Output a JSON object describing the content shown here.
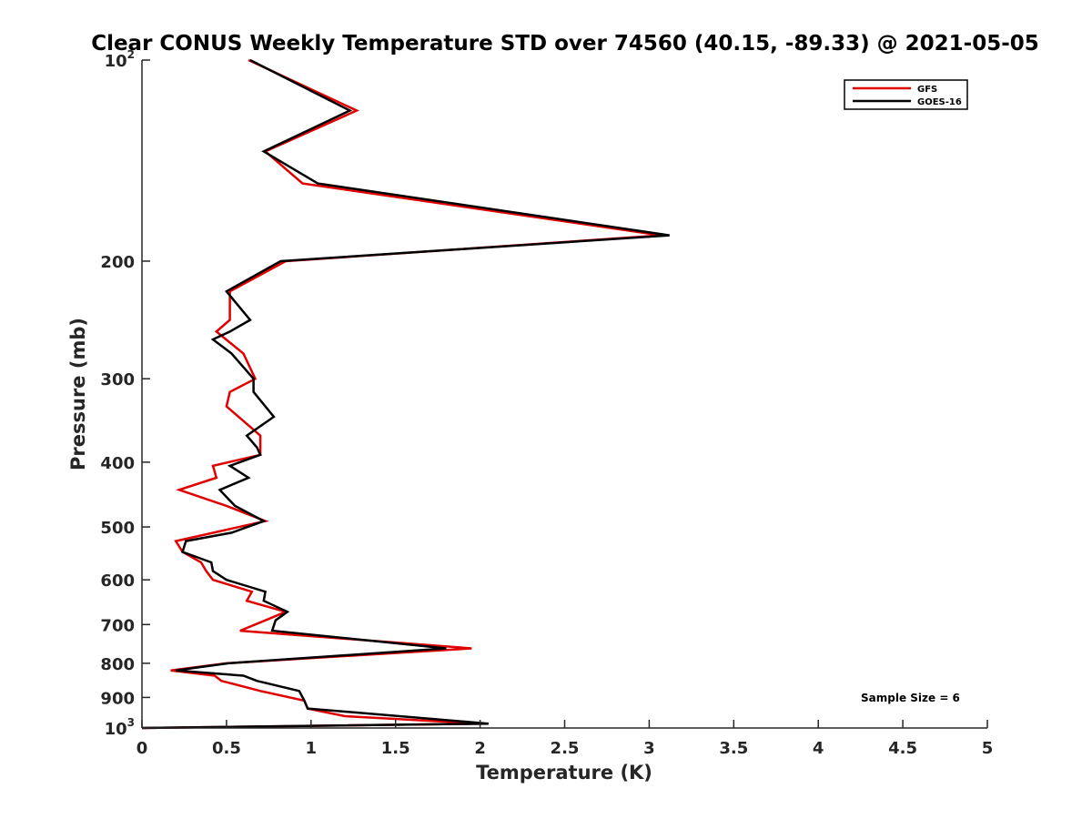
{
  "chart_data": {
    "type": "line",
    "title": "Clear CONUS Weekly Temperature STD over 74560 (40.15, -89.33) @ 2021-05-05",
    "xlabel": "Temperature (K)",
    "ylabel": "Pressure (mb)",
    "xlim": [
      0,
      5
    ],
    "ylim": [
      100,
      1000
    ],
    "y_scale": "log",
    "y_reversed": true,
    "x_ticks": [
      0,
      0.5,
      1,
      1.5,
      2,
      2.5,
      3,
      3.5,
      4,
      4.5,
      5
    ],
    "x_tick_labels": [
      "0",
      "0.5",
      "1",
      "1.5",
      "2",
      "2.5",
      "3",
      "3.5",
      "4",
      "4.5",
      "5"
    ],
    "y_ticks": [
      {
        "value": 100,
        "base": "10",
        "exp": "2"
      },
      {
        "value": 200,
        "label": "200"
      },
      {
        "value": 300,
        "label": "300"
      },
      {
        "value": 400,
        "label": "400"
      },
      {
        "value": 500,
        "label": "500"
      },
      {
        "value": 600,
        "label": "600"
      },
      {
        "value": 700,
        "label": "700"
      },
      {
        "value": 800,
        "label": "800"
      },
      {
        "value": 900,
        "label": "900"
      },
      {
        "value": 1000,
        "base": "10",
        "exp": "3"
      }
    ],
    "grid": false,
    "legend_position": "top-right",
    "annotation": "Sample Size = 6",
    "series": [
      {
        "name": "GFS",
        "color": "#e00000",
        "points": [
          [
            0.63,
            100
          ],
          [
            1.27,
            119
          ],
          [
            0.73,
            137
          ],
          [
            0.95,
            153
          ],
          [
            3.07,
            183
          ],
          [
            0.85,
            200
          ],
          [
            0.52,
            222
          ],
          [
            0.52,
            245
          ],
          [
            0.44,
            255
          ],
          [
            0.6,
            275
          ],
          [
            0.67,
            300
          ],
          [
            0.52,
            314
          ],
          [
            0.5,
            330
          ],
          [
            0.7,
            365
          ],
          [
            0.7,
            390
          ],
          [
            0.42,
            405
          ],
          [
            0.44,
            422
          ],
          [
            0.22,
            440
          ],
          [
            0.5,
            465
          ],
          [
            0.73,
            490
          ],
          [
            0.2,
            525
          ],
          [
            0.24,
            545
          ],
          [
            0.35,
            565
          ],
          [
            0.38,
            582
          ],
          [
            0.42,
            600
          ],
          [
            0.65,
            625
          ],
          [
            0.62,
            645
          ],
          [
            0.85,
            670
          ],
          [
            0.73,
            690
          ],
          [
            0.58,
            715
          ],
          [
            1.95,
            760
          ],
          [
            0.5,
            800
          ],
          [
            0.17,
            820
          ],
          [
            0.43,
            835
          ],
          [
            0.47,
            850
          ],
          [
            0.7,
            880
          ],
          [
            0.96,
            910
          ],
          [
            0.98,
            935
          ],
          [
            1.2,
            960
          ],
          [
            2.0,
            985
          ],
          [
            0.0,
            1000
          ]
        ]
      },
      {
        "name": "GOES-16",
        "color": "#000000",
        "points": [
          [
            0.64,
            100
          ],
          [
            1.23,
            119
          ],
          [
            0.72,
            137
          ],
          [
            1.04,
            153
          ],
          [
            3.12,
            183
          ],
          [
            0.82,
            200
          ],
          [
            0.5,
            222
          ],
          [
            0.64,
            245
          ],
          [
            0.52,
            255
          ],
          [
            0.42,
            262
          ],
          [
            0.53,
            275
          ],
          [
            0.66,
            300
          ],
          [
            0.66,
            314
          ],
          [
            0.78,
            342
          ],
          [
            0.62,
            365
          ],
          [
            0.68,
            380
          ],
          [
            0.7,
            390
          ],
          [
            0.52,
            405
          ],
          [
            0.63,
            422
          ],
          [
            0.46,
            440
          ],
          [
            0.55,
            465
          ],
          [
            0.72,
            490
          ],
          [
            0.53,
            510
          ],
          [
            0.26,
            525
          ],
          [
            0.24,
            545
          ],
          [
            0.41,
            565
          ],
          [
            0.42,
            582
          ],
          [
            0.5,
            600
          ],
          [
            0.73,
            625
          ],
          [
            0.72,
            645
          ],
          [
            0.86,
            670
          ],
          [
            0.79,
            690
          ],
          [
            0.77,
            715
          ],
          [
            1.8,
            760
          ],
          [
            0.51,
            800
          ],
          [
            0.2,
            820
          ],
          [
            0.6,
            835
          ],
          [
            0.68,
            850
          ],
          [
            0.93,
            880
          ],
          [
            0.96,
            910
          ],
          [
            0.98,
            935
          ],
          [
            2.05,
            985
          ],
          [
            0.0,
            1000
          ]
        ]
      }
    ]
  }
}
